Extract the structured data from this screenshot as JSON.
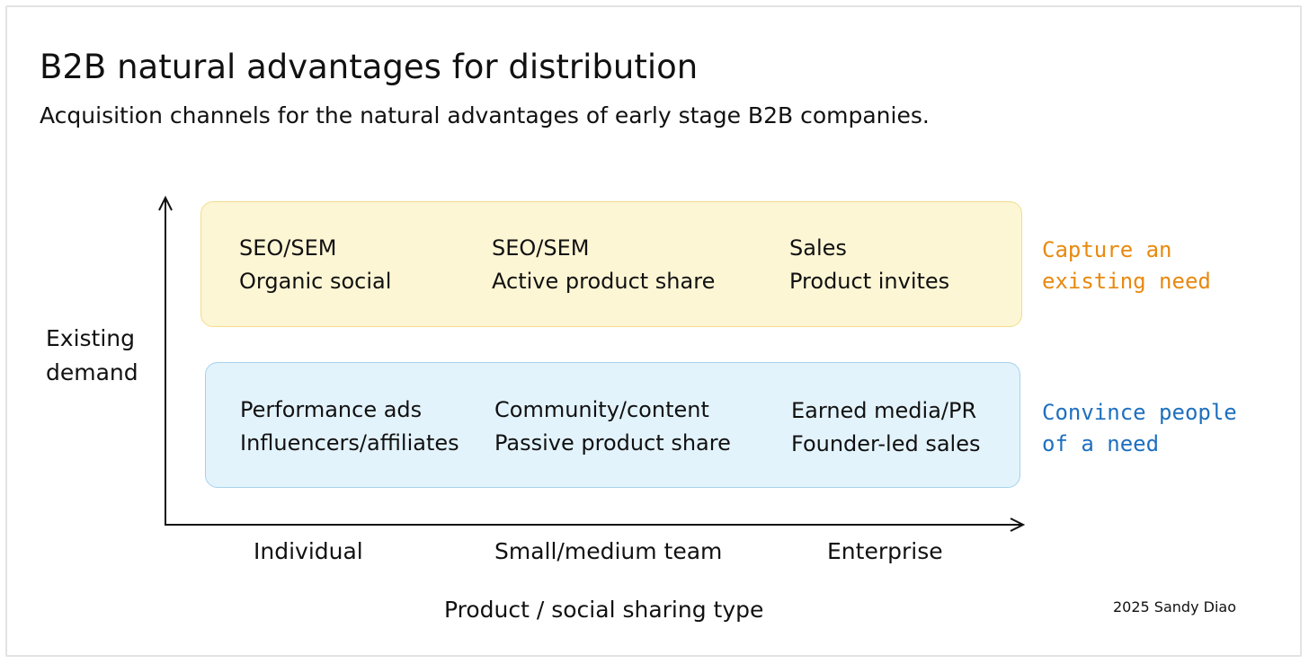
{
  "title": "B2B natural advantages for distribution",
  "subtitle": "Acquisition channels for the natural advantages of early stage B2B companies.",
  "y_axis_label": [
    "Existing",
    "demand"
  ],
  "x_axis_label": "Product / social sharing type",
  "x_ticks": [
    "Individual",
    "Small/medium team",
    "Enterprise"
  ],
  "rows": [
    {
      "label": [
        "Capture an",
        "existing need"
      ],
      "label_color": "#e8890f",
      "fill_color": "#fdf6d5",
      "border_color": "#f3dc8c",
      "cells": [
        [
          "SEO/SEM",
          "Organic social"
        ],
        [
          "SEO/SEM",
          "Active product share"
        ],
        [
          "Sales",
          "Product invites"
        ]
      ]
    },
    {
      "label": [
        "Convince people",
        "of a need"
      ],
      "label_color": "#1e6fbf",
      "fill_color": "#e3f3fc",
      "border_color": "#a6d2ea",
      "cells": [
        [
          "Performance ads",
          "Influencers/affiliates"
        ],
        [
          "Community/content",
          "Passive product share"
        ],
        [
          "Earned media/PR",
          "Founder-led sales"
        ]
      ]
    }
  ],
  "credit": "2025 Sandy Diao"
}
